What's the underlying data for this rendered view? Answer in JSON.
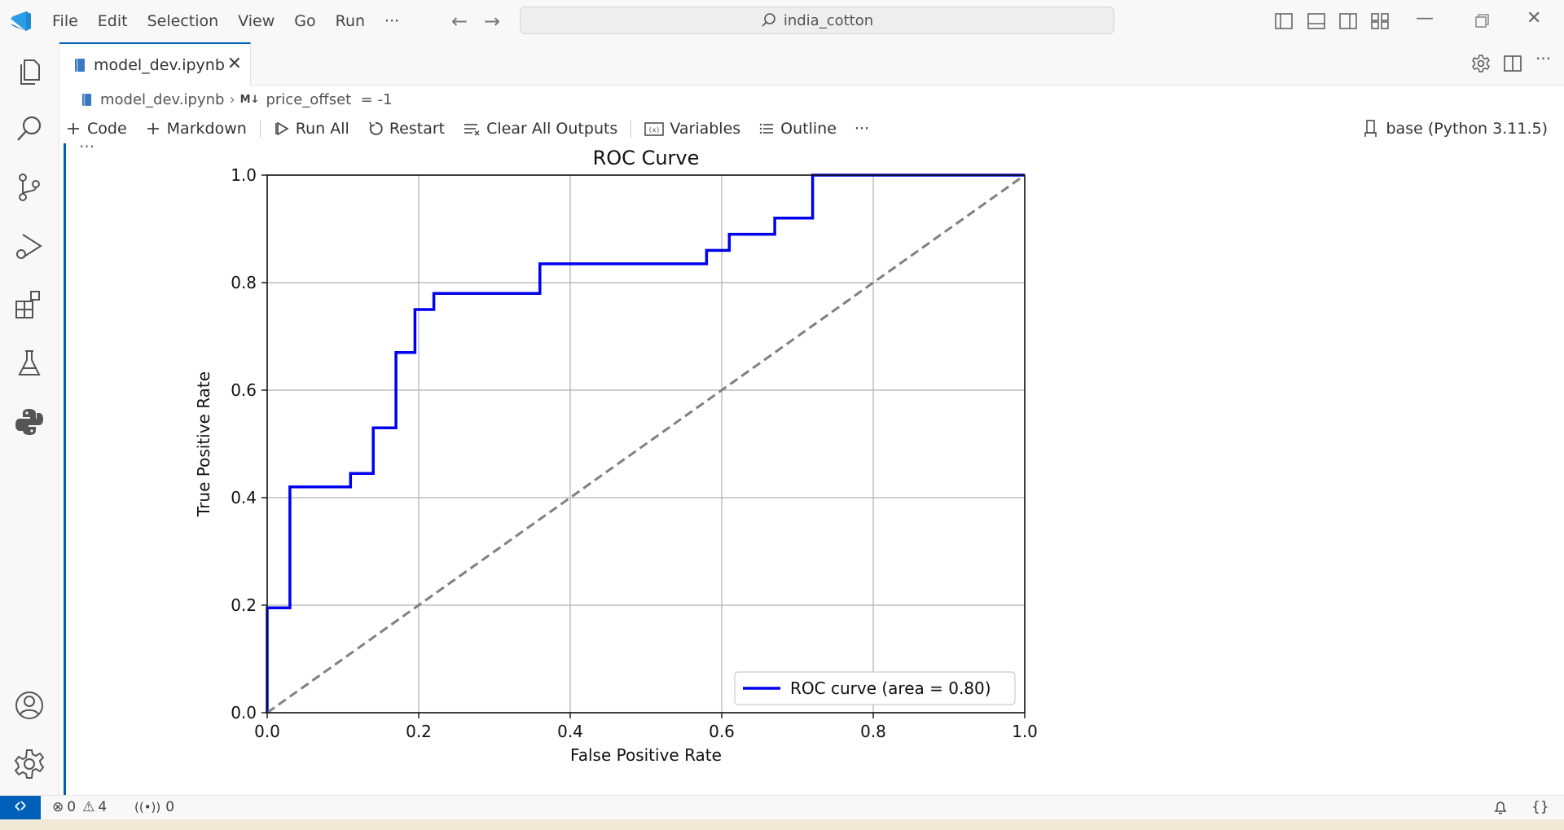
{
  "titlebar": {
    "menu": [
      "File",
      "Edit",
      "Selection",
      "View",
      "Go",
      "Run",
      "···"
    ],
    "search_text": "india_cotton"
  },
  "tab": {
    "label": "model_dev.ipynb"
  },
  "breadcrumb": {
    "file": "model_dev.ipynb",
    "cell": "price_offset  = -1"
  },
  "toolbar": {
    "code": "Code",
    "markdown": "Markdown",
    "run_all": "Run All",
    "restart": "Restart",
    "clear": "Clear All Outputs",
    "variables": "Variables",
    "outline": "Outline",
    "more": "···",
    "kernel": "base (Python 3.11.5)"
  },
  "cell": {
    "ellipsis": "···"
  },
  "status": {
    "errors": "0",
    "warnings": "4",
    "ports": "0"
  },
  "colors": {
    "accent": "#005fb8",
    "roc_line": "#0000ee",
    "diagonal": "#808080"
  },
  "chart_data": {
    "type": "line",
    "title": "ROC Curve",
    "xlabel": "False Positive Rate",
    "ylabel": "True Positive Rate",
    "xlim": [
      0,
      1
    ],
    "ylim": [
      0,
      1
    ],
    "xticks": [
      "0.0",
      "0.2",
      "0.4",
      "0.6",
      "0.8",
      "1.0"
    ],
    "yticks": [
      "0.0",
      "0.2",
      "0.4",
      "0.6",
      "0.8",
      "1.0"
    ],
    "grid": true,
    "legend_position": "lower-right",
    "series": [
      {
        "name": "ROC curve (area = 0.80)",
        "style": "solid",
        "x": [
          0,
          0,
          0.03,
          0.03,
          0.11,
          0.11,
          0.14,
          0.14,
          0.17,
          0.17,
          0.195,
          0.195,
          0.22,
          0.22,
          0.36,
          0.36,
          0.58,
          0.58,
          0.61,
          0.61,
          0.67,
          0.67,
          0.72,
          0.72,
          1.0
        ],
        "y": [
          0,
          0.195,
          0.195,
          0.42,
          0.42,
          0.445,
          0.445,
          0.53,
          0.53,
          0.67,
          0.67,
          0.75,
          0.75,
          0.78,
          0.78,
          0.835,
          0.835,
          0.86,
          0.86,
          0.89,
          0.89,
          0.92,
          0.92,
          1.0,
          1.0
        ]
      },
      {
        "name": "",
        "style": "dashed",
        "x": [
          0,
          1
        ],
        "y": [
          0,
          1
        ]
      }
    ]
  }
}
